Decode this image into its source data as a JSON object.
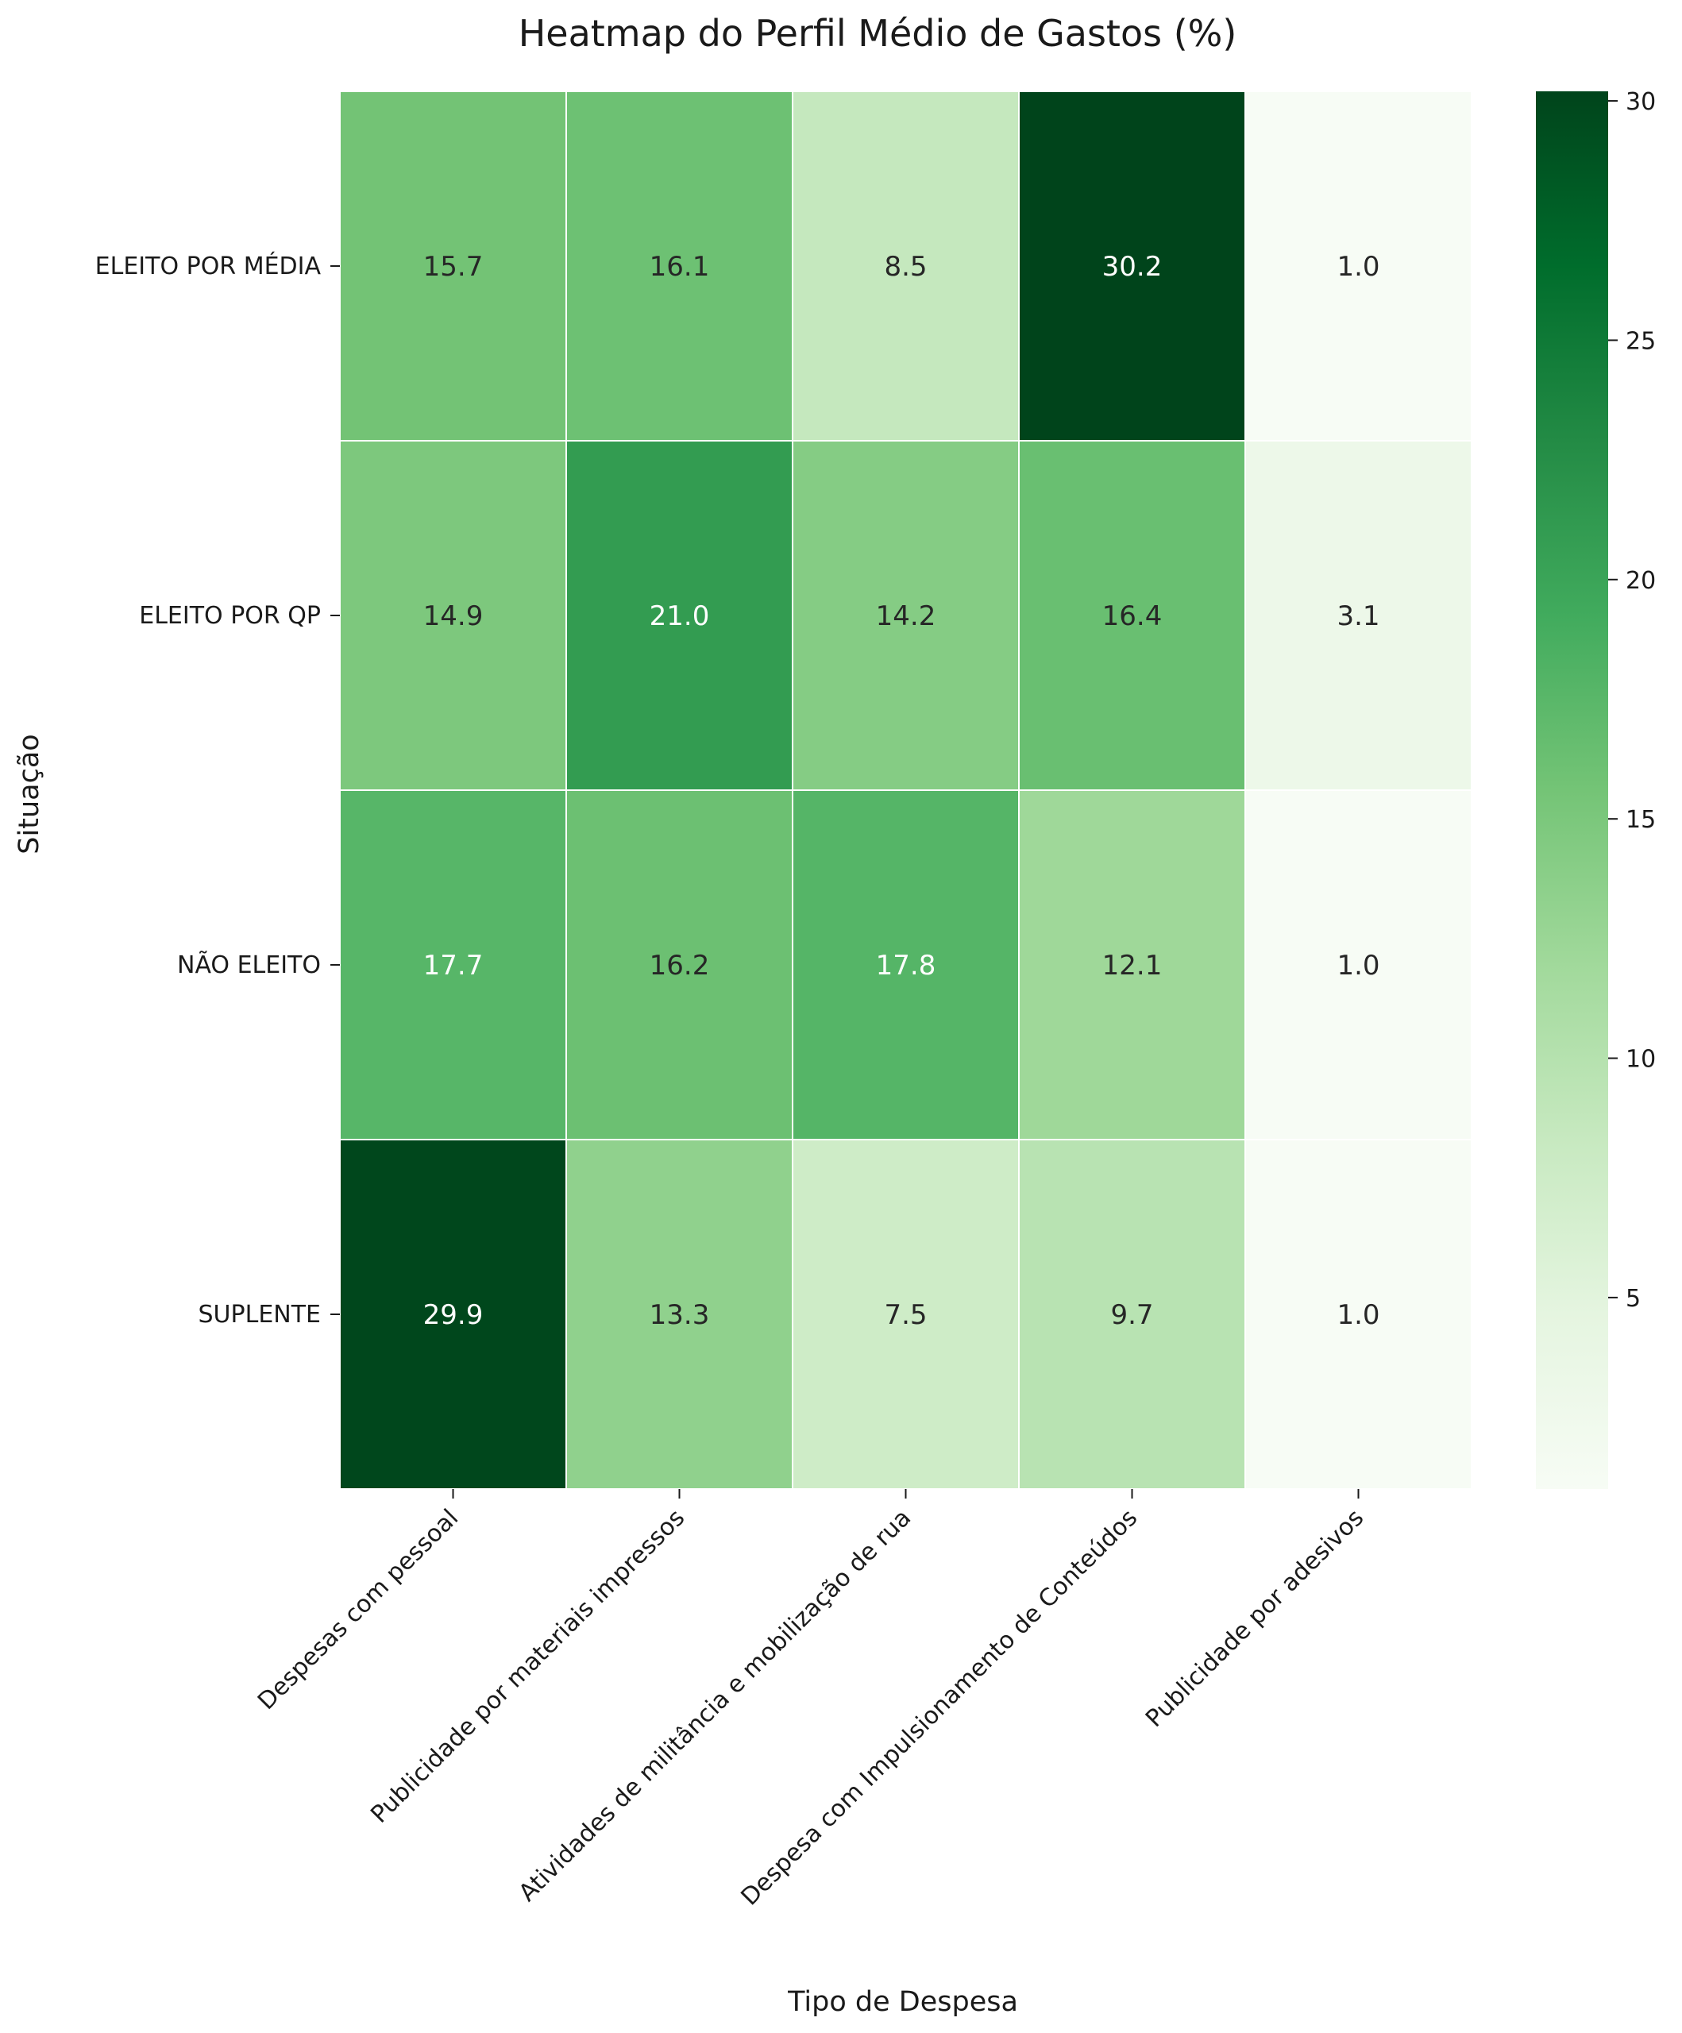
{
  "chart_data": {
    "type": "heatmap",
    "title": "Heatmap do Perfil Médio de Gastos (%)",
    "xlabel": "Tipo de Despesa",
    "ylabel": "Situação",
    "rows": [
      "ELEITO POR MÉDIA",
      "ELEITO POR QP",
      "NÃO ELEITO",
      "SUPLENTE"
    ],
    "columns": [
      "Despesas com pessoal",
      "Publicidade por materiais impressos",
      "Atividades de militância e mobilização de rua",
      "Despesa com Impulsionamento de Conteúdos",
      "Publicidade por adesivos"
    ],
    "values": [
      [
        15.7,
        16.1,
        8.5,
        30.2,
        1.0
      ],
      [
        14.9,
        21.0,
        14.2,
        16.4,
        3.1
      ],
      [
        17.7,
        16.2,
        17.8,
        12.1,
        1.0
      ],
      [
        29.9,
        13.3,
        7.5,
        9.7,
        1.0
      ]
    ],
    "value_labels": [
      [
        "15.7",
        "16.1",
        "8.5",
        "30.2",
        "1.0"
      ],
      [
        "14.9",
        "21.0",
        "14.2",
        "16.4",
        "3.1"
      ],
      [
        "17.7",
        "16.2",
        "17.8",
        "12.1",
        "1.0"
      ],
      [
        "29.9",
        "13.3",
        "7.5",
        "9.7",
        "1.0"
      ]
    ],
    "colormap": "Greens",
    "colorbar": {
      "range": [
        1.0,
        30.2
      ],
      "ticks": [
        5,
        10,
        15,
        20,
        25,
        30
      ],
      "tick_labels": [
        "5",
        "10",
        "15",
        "20",
        "25",
        "30"
      ]
    },
    "colors": {
      "low": "#f7fcf5",
      "high": "#00441b",
      "cell_border": "#ffffff",
      "text_dark": "#262626",
      "text_light": "#ffffff"
    }
  }
}
